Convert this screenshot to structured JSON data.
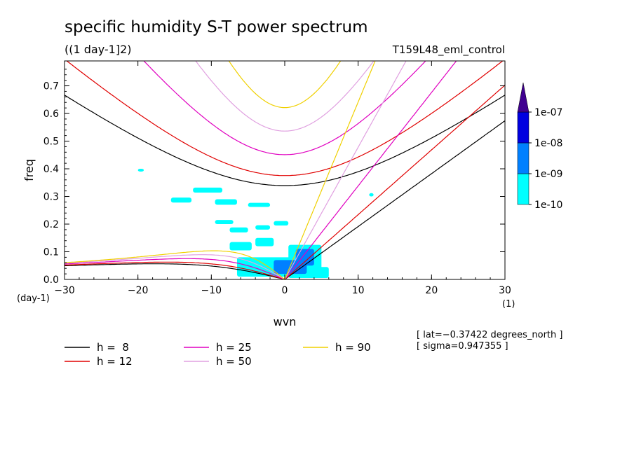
{
  "chart_data": {
    "type": "line",
    "title": "specific humidity S-T power spectrum",
    "subtitle": "((1 day-1]2)",
    "run_label": "T159L48_eml_control",
    "xlabel": "wvn",
    "ylabel": "freq",
    "x_unit": "(1)",
    "y_unit": "(day-1)",
    "xlim": [
      -30,
      30
    ],
    "ylim": [
      0,
      0.79
    ],
    "x_ticks": [
      -30,
      -20,
      -10,
      0,
      10,
      20,
      30
    ],
    "x_tick_labels": [
      "−30",
      "−20",
      "−10",
      "0",
      "10",
      "20",
      "30"
    ],
    "y_ticks": [
      0.0,
      0.1,
      0.2,
      0.3,
      0.4,
      0.5,
      0.6,
      0.7
    ],
    "y_tick_labels": [
      "0.0",
      "0.1",
      "0.2",
      "0.3",
      "0.4",
      "0.5",
      "0.6",
      "0.7"
    ],
    "grid": false,
    "legend_position": "bottom",
    "series": [
      {
        "name": "h =  8",
        "h": 8,
        "color": "#000000"
      },
      {
        "name": "h = 12",
        "h": 12,
        "color": "#e00000"
      },
      {
        "name": "h = 25",
        "h": 25,
        "color": "#e000c0"
      },
      {
        "name": "h = 50",
        "h": 50,
        "color": "#e0a0e0"
      },
      {
        "name": "h = 90",
        "h": 90,
        "color": "#f0d000"
      }
    ],
    "shading_levels": [
      {
        "label": "1e-10",
        "color": "#00ffff"
      },
      {
        "label": "1e-09",
        "color": "#0080ff"
      },
      {
        "label": "1e-08",
        "color": "#0000e0"
      },
      {
        "label": "1e-07",
        "color": "#400090"
      }
    ],
    "shading_patches": [
      {
        "x": -12.5,
        "y": 0.314,
        "w": 4.0,
        "h": 0.018
      },
      {
        "x": -15.5,
        "y": 0.278,
        "w": 2.8,
        "h": 0.018
      },
      {
        "x": -9.5,
        "y": 0.27,
        "w": 3.0,
        "h": 0.02
      },
      {
        "x": -5.0,
        "y": 0.262,
        "w": 3.0,
        "h": 0.015
      },
      {
        "x": -9.5,
        "y": 0.2,
        "w": 2.5,
        "h": 0.015
      },
      {
        "x": -7.5,
        "y": 0.17,
        "w": 2.5,
        "h": 0.018
      },
      {
        "x": -4.0,
        "y": 0.18,
        "w": 2.0,
        "h": 0.016
      },
      {
        "x": -1.5,
        "y": 0.195,
        "w": 2.0,
        "h": 0.016
      },
      {
        "x": -7.5,
        "y": 0.105,
        "w": 3.0,
        "h": 0.03
      },
      {
        "x": -4.0,
        "y": 0.12,
        "w": 2.5,
        "h": 0.03
      },
      {
        "x": -6.5,
        "y": 0.01,
        "w": 10.0,
        "h": 0.07
      },
      {
        "x": 0.5,
        "y": 0.005,
        "w": 4.5,
        "h": 0.12
      },
      {
        "x": 3.5,
        "y": 0.005,
        "w": 2.5,
        "h": 0.04
      },
      {
        "x": -20.0,
        "y": 0.39,
        "w": 0.8,
        "h": 0.01
      },
      {
        "x": 11.5,
        "y": 0.3,
        "w": 0.6,
        "h": 0.012
      }
    ],
    "shading_patches_dark": [
      {
        "x": -1.5,
        "y": 0.02,
        "w": 4.5,
        "h": 0.05
      },
      {
        "x": 1.5,
        "y": 0.05,
        "w": 2.5,
        "h": 0.06
      }
    ],
    "info": [
      "[ lat=−0.37422 degrees_north ]",
      "[ sigma=0.947355 ]"
    ]
  }
}
